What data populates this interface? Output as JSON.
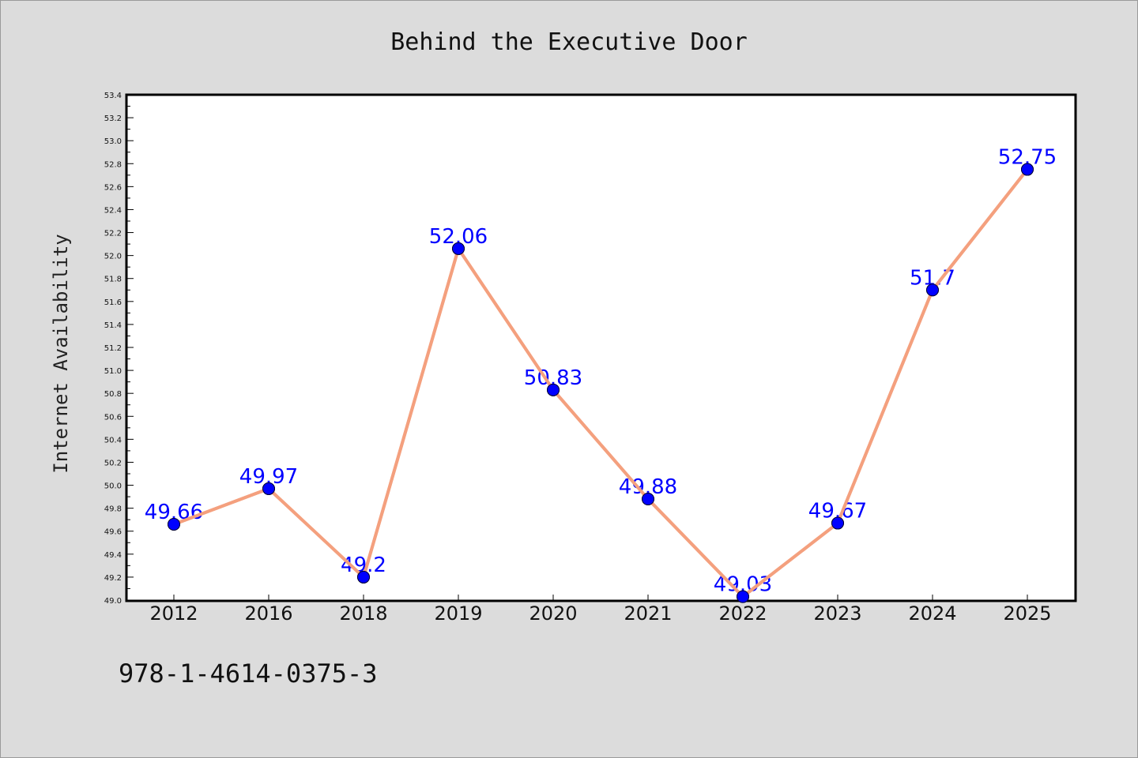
{
  "chart_data": {
    "type": "line",
    "title": "Behind the Executive Door",
    "xlabel": "",
    "ylabel": "Internet Availability",
    "categories": [
      "2012",
      "2016",
      "2018",
      "2019",
      "2020",
      "2021",
      "2022",
      "2023",
      "2024",
      "2025"
    ],
    "series": [
      {
        "values": [
          49.66,
          49.97,
          49.2,
          52.06,
          50.83,
          49.88,
          49.03,
          49.67,
          51.7,
          52.75
        ],
        "color": "#f4a07e",
        "marker_color": "#0000ff"
      }
    ],
    "ylim": [
      49.0,
      53.4
    ],
    "yticks": [
      "49.0",
      "49.2",
      "49.4",
      "49.6",
      "49.8",
      "50.0",
      "50.2",
      "50.4",
      "50.6",
      "50.8",
      "51.0",
      "51.2",
      "51.4",
      "51.6",
      "51.8",
      "52.0",
      "52.2",
      "52.4",
      "52.6",
      "52.8",
      "53.0",
      "53.2",
      "53.4"
    ],
    "data_labels": [
      "49.66",
      "49.97",
      "49.2",
      "52.06",
      "50.83",
      "49.88",
      "49.03",
      "49.67",
      "51.7",
      "52.75"
    ],
    "grid": false,
    "legend": "none",
    "label_color": "#0000ff",
    "background": "#dcdcdc",
    "plot_background": "#ffffff"
  },
  "footer": {
    "text": "978-1-4614-0375-3"
  }
}
